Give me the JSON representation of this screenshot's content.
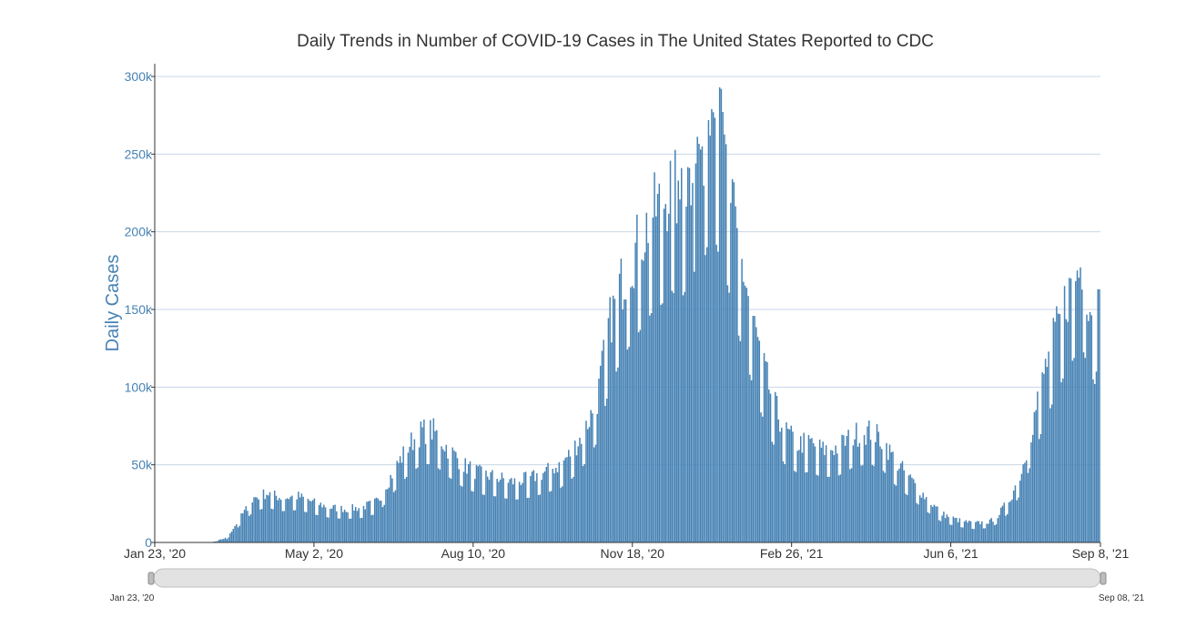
{
  "chart_data": {
    "type": "bar",
    "title": "Daily Trends in Number of COVID-19 Cases in The United States Reported to CDC",
    "xlabel": "",
    "ylabel": "Daily Cases",
    "ylim": [
      0,
      300000
    ],
    "y_ticks": [
      {
        "value": 0,
        "label": "0"
      },
      {
        "value": 50000,
        "label": "50k"
      },
      {
        "value": 100000,
        "label": "100k"
      },
      {
        "value": 150000,
        "label": "150k"
      },
      {
        "value": 200000,
        "label": "200k"
      },
      {
        "value": 250000,
        "label": "250k"
      },
      {
        "value": 300000,
        "label": "300k"
      }
    ],
    "x_ticks": [
      {
        "day": 0,
        "label": "Jan 23, '20"
      },
      {
        "day": 100,
        "label": "May 2, '20"
      },
      {
        "day": 200,
        "label": "Aug 10, '20"
      },
      {
        "day": 300,
        "label": "Nov 18, '20"
      },
      {
        "day": 400,
        "label": "Feb 26, '21"
      },
      {
        "day": 500,
        "label": "Jun 6, '21"
      },
      {
        "day": 594,
        "label": "Sep 8, '21"
      }
    ],
    "series_color": "#4682b4",
    "grid": true,
    "weekly_dip_ratio": 0.72,
    "trend_anchors": [
      [
        0,
        0
      ],
      [
        35,
        0
      ],
      [
        45,
        3000
      ],
      [
        55,
        18000
      ],
      [
        62,
        28000
      ],
      [
        70,
        31000
      ],
      [
        80,
        28000
      ],
      [
        90,
        29000
      ],
      [
        100,
        25000
      ],
      [
        110,
        22000
      ],
      [
        120,
        21000
      ],
      [
        130,
        22000
      ],
      [
        140,
        26000
      ],
      [
        150,
        45000
      ],
      [
        160,
        62000
      ],
      [
        168,
        70000
      ],
      [
        175,
        70000
      ],
      [
        185,
        58000
      ],
      [
        195,
        48000
      ],
      [
        205,
        43000
      ],
      [
        215,
        41000
      ],
      [
        225,
        38000
      ],
      [
        235,
        40000
      ],
      [
        245,
        44000
      ],
      [
        255,
        49000
      ],
      [
        262,
        57000
      ],
      [
        270,
        70000
      ],
      [
        278,
        90000
      ],
      [
        285,
        135000
      ],
      [
        292,
        160000
      ],
      [
        298,
        175000
      ],
      [
        305,
        190000
      ],
      [
        312,
        205000
      ],
      [
        320,
        215000
      ],
      [
        325,
        225000
      ],
      [
        330,
        215000
      ],
      [
        335,
        230000
      ],
      [
        340,
        245000
      ],
      [
        345,
        250000
      ],
      [
        350,
        285000
      ],
      [
        354,
        260000
      ],
      [
        360,
        230000
      ],
      [
        366,
        190000
      ],
      [
        372,
        160000
      ],
      [
        380,
        120000
      ],
      [
        388,
        90000
      ],
      [
        396,
        70000
      ],
      [
        404,
        62000
      ],
      [
        412,
        63000
      ],
      [
        420,
        58000
      ],
      [
        430,
        60000
      ],
      [
        440,
        68000
      ],
      [
        450,
        70000
      ],
      [
        458,
        64000
      ],
      [
        465,
        52000
      ],
      [
        475,
        40000
      ],
      [
        485,
        28000
      ],
      [
        495,
        18000
      ],
      [
        505,
        14000
      ],
      [
        515,
        12000
      ],
      [
        525,
        13000
      ],
      [
        530,
        17000
      ],
      [
        538,
        28000
      ],
      [
        545,
        45000
      ],
      [
        552,
        75000
      ],
      [
        560,
        110000
      ],
      [
        566,
        130000
      ],
      [
        572,
        150000
      ],
      [
        578,
        165000
      ],
      [
        583,
        175000
      ],
      [
        588,
        150000
      ],
      [
        594,
        140000
      ]
    ],
    "spikes": [
      [
        344,
        255000
      ],
      [
        350,
        279000
      ],
      [
        351,
        277000
      ],
      [
        355,
        293000
      ],
      [
        356,
        292000
      ],
      [
        349,
        262000
      ],
      [
        340,
        244000
      ],
      [
        336,
        241000
      ],
      [
        331,
        241000
      ],
      [
        329,
        233000
      ]
    ]
  },
  "range_slider": {
    "start_label": "Jan 23, '20",
    "end_label": "Sep 08, '21"
  }
}
